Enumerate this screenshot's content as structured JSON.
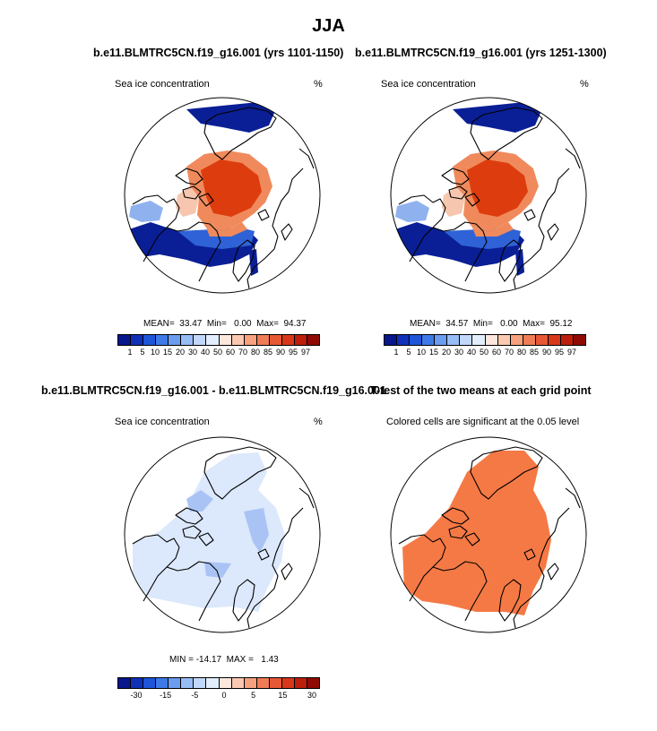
{
  "title": "JJA",
  "panels": [
    {
      "title": "b.e11.BLMTRC5CN.f19_g16.001 (yrs 1101-1150)",
      "var_label": "Sea ice concentration",
      "unit": "%",
      "stats": "MEAN=  33.47  Min=   0.00  Max=  94.37",
      "colorbar": {
        "colors": [
          "#08178c",
          "#1030b8",
          "#1e55d8",
          "#3d7ae8",
          "#6a9cef",
          "#98bcf5",
          "#c2d8fa",
          "#e3eefc",
          "#fde7dc",
          "#fbc9b0",
          "#f7a17f",
          "#f07c56",
          "#e65934",
          "#d8381a",
          "#bd1e0b",
          "#8f0a05"
        ],
        "labels": [
          "1",
          "5",
          "10",
          "15",
          "20",
          "30",
          "40",
          "50",
          "60",
          "70",
          "80",
          "85",
          "90",
          "95",
          "97"
        ]
      }
    },
    {
      "title": "b.e11.BLMTRC5CN.f19_g16.001 (yrs 1251-1300)",
      "var_label": "Sea ice concentration",
      "unit": "%",
      "stats": "MEAN=  34.57  Min=   0.00  Max=  95.12",
      "colorbar": {
        "colors": [
          "#08178c",
          "#1030b8",
          "#1e55d8",
          "#3d7ae8",
          "#6a9cef",
          "#98bcf5",
          "#c2d8fa",
          "#e3eefc",
          "#fde7dc",
          "#fbc9b0",
          "#f7a17f",
          "#f07c56",
          "#e65934",
          "#d8381a",
          "#bd1e0b",
          "#8f0a05"
        ],
        "labels": [
          "1",
          "5",
          "10",
          "15",
          "20",
          "30",
          "40",
          "50",
          "60",
          "70",
          "80",
          "85",
          "90",
          "95",
          "97"
        ]
      }
    },
    {
      "title": "b.e11.BLMTRC5CN.f19_g16.001 - b.e11.BLMTRC5CN.f19_g16.001",
      "var_label": "Sea ice concentration",
      "unit": "%",
      "stats": "MIN = -14.17  MAX =   1.43",
      "colorbar": {
        "colors": [
          "#08178c",
          "#1030b8",
          "#1e55d8",
          "#3d7ae8",
          "#6a9cef",
          "#98bcf5",
          "#c2d8fa",
          "#e3eefc",
          "#fde7dc",
          "#fbc9b0",
          "#f7a17f",
          "#f07c56",
          "#e65934",
          "#d8381a",
          "#bd1e0b",
          "#8f0a05"
        ],
        "labels": [
          "-30",
          "-15",
          "-5",
          "0",
          "5",
          "15",
          "30"
        ]
      }
    },
    {
      "title": "T-test of the two means at each grid point",
      "subtitle": "Colored cells are significant at the 0.05 level"
    }
  ],
  "map_colors": {
    "ice_high": "#dd3d0e",
    "ice_mid": "#f08a5c",
    "ice_edge_light": "#f6c6ae",
    "blue_dark": "#0a1f96",
    "blue_mid": "#2f62d6",
    "blue_light": "#8fb2ef",
    "diff_light": "#dce8fb",
    "diff_mid": "#a9c4f4",
    "sig_orange": "#f57945",
    "coast": "#000000"
  }
}
